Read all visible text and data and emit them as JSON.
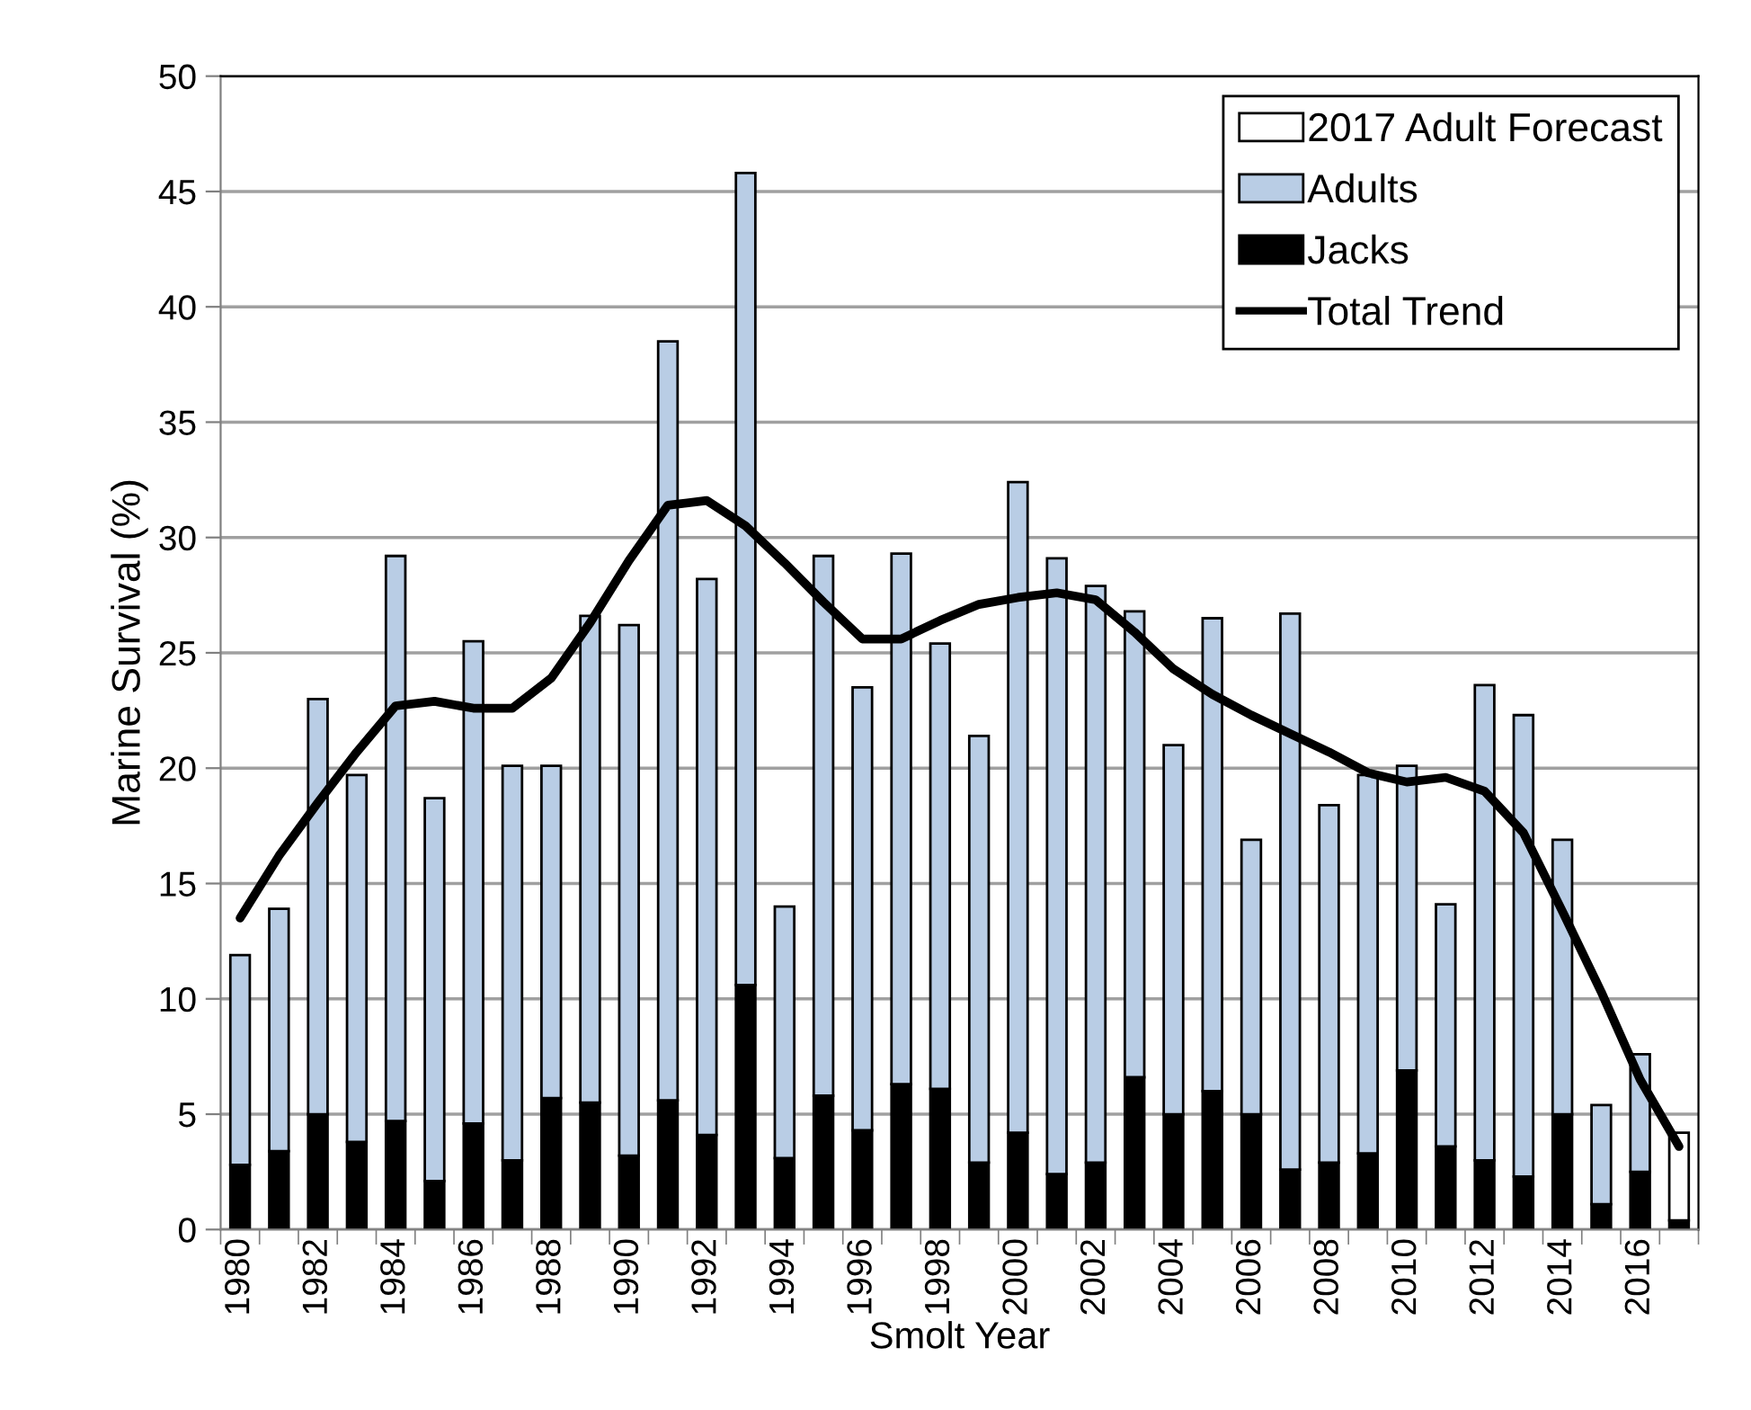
{
  "chart_data": {
    "type": "bar",
    "stacked": true,
    "xlabel": "Smolt Year",
    "ylabel": "Marine Survival (%)",
    "categories": [
      "1980",
      null,
      "1982",
      null,
      "1984",
      null,
      "1986",
      null,
      "1988",
      null,
      "1990",
      null,
      "1992",
      null,
      "1994",
      null,
      "1996",
      null,
      "1998",
      null,
      "2000",
      null,
      "2002",
      null,
      "2004",
      null,
      "2006",
      null,
      "2008",
      null,
      "2010",
      null,
      "2012",
      null,
      "2014",
      null,
      "2016",
      null
    ],
    "series": [
      {
        "name": "Jacks",
        "color": "#000000",
        "values": [
          2.8,
          3.4,
          5.0,
          3.8,
          4.7,
          2.1,
          4.6,
          3.0,
          5.7,
          5.5,
          3.2,
          5.6,
          4.1,
          10.6,
          3.1,
          5.8,
          4.3,
          6.3,
          6.1,
          2.9,
          4.2,
          2.4,
          2.9,
          6.6,
          5.0,
          6.0,
          5.0,
          2.6,
          2.9,
          3.3,
          6.9,
          3.6,
          3.0,
          2.3,
          5.0,
          1.1,
          2.5,
          0.4
        ]
      },
      {
        "name": "Adults",
        "color": "#b9cde5",
        "values": [
          9.1,
          10.5,
          18.0,
          15.9,
          24.5,
          16.6,
          20.9,
          17.1,
          14.4,
          21.1,
          23.0,
          32.9,
          24.1,
          35.2,
          10.9,
          23.4,
          19.2,
          23.0,
          19.3,
          18.5,
          28.2,
          26.7,
          25.0,
          20.2,
          16.0,
          20.5,
          11.9,
          24.1,
          15.5,
          16.4,
          13.2,
          10.5,
          20.6,
          20.0,
          11.9,
          4.3,
          5.1,
          null
        ]
      },
      {
        "name": "2017 Adult Forecast",
        "color": "#ffffff",
        "values": [
          null,
          null,
          null,
          null,
          null,
          null,
          null,
          null,
          null,
          null,
          null,
          null,
          null,
          null,
          null,
          null,
          null,
          null,
          null,
          null,
          null,
          null,
          null,
          null,
          null,
          null,
          null,
          null,
          null,
          null,
          null,
          null,
          null,
          null,
          null,
          null,
          null,
          3.8
        ]
      },
      {
        "name": "Total Trend",
        "type": "line",
        "color": "#000000",
        "values": [
          13.5,
          16.2,
          18.5,
          20.7,
          22.7,
          22.9,
          22.6,
          22.6,
          23.9,
          26.3,
          29.0,
          31.4,
          31.6,
          30.5,
          28.9,
          27.2,
          25.6,
          25.6,
          26.4,
          27.1,
          27.4,
          27.6,
          27.3,
          25.9,
          24.3,
          23.2,
          22.3,
          21.5,
          20.7,
          19.8,
          19.4,
          19.6,
          19.0,
          17.2,
          13.8,
          10.3,
          6.5,
          3.6
        ]
      }
    ],
    "ylim": [
      0,
      50
    ],
    "yticks": [
      0,
      5,
      10,
      15,
      20,
      25,
      30,
      35,
      40,
      45,
      50
    ],
    "grid": "y",
    "legend": "top right",
    "line_style": "solid",
    "marker": "none"
  }
}
